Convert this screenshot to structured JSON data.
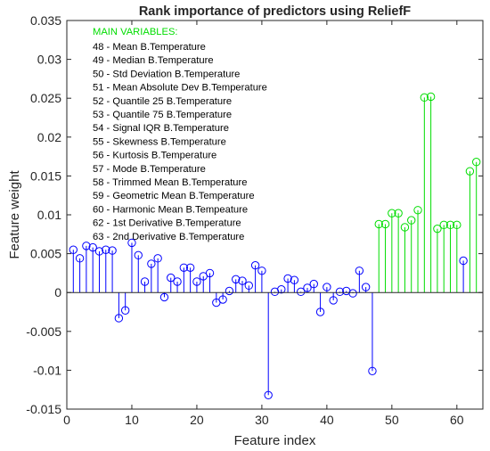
{
  "chart_data": {
    "type": "stem",
    "title": "Rank importance of predictors using ReliefF",
    "xlabel": "Feature index",
    "ylabel": "Feature weight",
    "xlim": [
      0,
      64
    ],
    "ylim": [
      -0.015,
      0.035
    ],
    "x_ticks": [
      0,
      10,
      20,
      30,
      40,
      50,
      60
    ],
    "x_tick_labels": [
      "0",
      "10",
      "20",
      "30",
      "40",
      "50",
      "60"
    ],
    "y_ticks": [
      -0.015,
      -0.01,
      -0.005,
      0,
      0.005,
      0.01,
      0.015,
      0.02,
      0.025,
      0.03,
      0.035
    ],
    "y_tick_labels": [
      "-0.015",
      "-0.01",
      "-0.005",
      "0",
      "0.005",
      "0.01",
      "0.015",
      "0.02",
      "0.025",
      "0.03",
      "0.035"
    ],
    "grid": false,
    "colors": {
      "other": "#0000FF",
      "main": "#00DD00"
    },
    "legend": {
      "heading": "MAIN VARIABLES:",
      "items": [
        "48 - Mean B.Temperature",
        "49 - Median B.Temperature",
        "50 - Std Deviation B.Temperature",
        "51 - Mean Absolute Dev B.Temperature",
        "52 - Quantile 25 B.Temperature",
        "53 - Quantile 75 B.Temperature",
        "54 - Signal IQR B.Temperature",
        "55 - Skewness B.Temperature",
        "56 - Kurtosis B.Temperature",
        "57 - Mode B.Temperature",
        "58 - Trimmed Mean B.Temperature",
        "59 - Geometric Mean B.Temperature",
        "60 - Harmonic Mean B.Tempeature",
        "62 - 1st Derivative B.Temperature",
        "63 - 2nd Derivative B.Temperature"
      ]
    },
    "series": [
      {
        "group": "other",
        "x": [
          1,
          2,
          3,
          4,
          5,
          6,
          7,
          8,
          9,
          10,
          11,
          12,
          13,
          14,
          15,
          16,
          17,
          18,
          19,
          20,
          21,
          22,
          23,
          24,
          25,
          26,
          27,
          28,
          29,
          30,
          31,
          32,
          33,
          34,
          35,
          36,
          37,
          38,
          39,
          40,
          41,
          42,
          43,
          44,
          45,
          46,
          47,
          61
        ],
        "values": [
          0.0055,
          0.0044,
          0.006,
          0.0058,
          0.0053,
          0.0055,
          0.0054,
          -0.0033,
          -0.0023,
          0.0064,
          0.0048,
          0.0014,
          0.0037,
          0.0044,
          -0.0006,
          0.0019,
          0.0014,
          0.0032,
          0.0032,
          0.0014,
          0.0021,
          0.0025,
          -0.0013,
          -0.0009,
          0.0002,
          0.0017,
          0.0015,
          0.0009,
          0.0035,
          0.0028,
          -0.0132,
          0.0001,
          0.0004,
          0.0018,
          0.0016,
          0.0001,
          0.0006,
          0.0011,
          -0.0025,
          0.0007,
          -0.001,
          0.0001,
          0.0002,
          -0.0001,
          0.0028,
          0.0007,
          -0.0101,
          0.0041
        ]
      },
      {
        "group": "main",
        "x": [
          48,
          49,
          50,
          51,
          52,
          53,
          54,
          55,
          56,
          57,
          58,
          59,
          60,
          62,
          63
        ],
        "values": [
          0.0088,
          0.0088,
          0.0102,
          0.0102,
          0.0084,
          0.0093,
          0.0106,
          0.0251,
          0.0252,
          0.0082,
          0.0087,
          0.0087,
          0.0087,
          0.0156,
          0.0168
        ]
      }
    ]
  }
}
